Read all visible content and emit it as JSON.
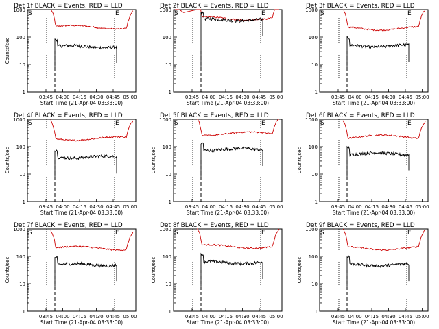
{
  "chart_data": [
    {
      "type": "line",
      "title": "Det 1f BLACK = Events, RED = LLD",
      "ylabel": "Counts/sec",
      "xlabel": "Start Time (21-Apr-04 03:33:00)",
      "x_ticks": [
        "03:45",
        "04:00",
        "04:15",
        "04:30",
        "04:45",
        "05:00"
      ],
      "y_ticks": [
        "1",
        "10",
        "100",
        "1000"
      ],
      "ylim": [
        1,
        1000
      ],
      "y_scale": "log",
      "markers": [
        "S",
        "E"
      ],
      "series": [
        {
          "color": "#cc0000",
          "y_level": 230,
          "spike": null
        },
        {
          "color": "#000000",
          "y_level": 45,
          "spike": null
        }
      ]
    },
    {
      "type": "line",
      "title": "Det 2f BLACK = Events, RED = LLD",
      "ylabel": "",
      "xlabel": "Start Time (21-Apr-04 03:33:00)",
      "x_ticks": [
        "03:45",
        "04:00",
        "04:15",
        "04:30",
        "04:45",
        "05:00"
      ],
      "y_ticks": [
        "1",
        "10",
        "100",
        "1000"
      ],
      "ylim": [
        1,
        1000
      ],
      "y_scale": "log",
      "markers": [
        "S",
        "E"
      ],
      "series": [
        {
          "color": "#cc0000",
          "y_level": 480,
          "spike": 1200
        },
        {
          "color": "#000000",
          "y_level": 430,
          "spike": null
        }
      ]
    },
    {
      "type": "line",
      "title": "Det 3f BLACK = Events, RED = LLD",
      "ylabel": "",
      "xlabel": "Start Time (21-Apr-04 03:33:00)",
      "x_ticks": [
        "03:45",
        "04:00",
        "04:15",
        "04:30",
        "04:45",
        "05:00"
      ],
      "y_ticks": [
        "1",
        "10",
        "100",
        "1000"
      ],
      "ylim": [
        1,
        1000
      ],
      "y_scale": "log",
      "markers": [
        "S",
        "E"
      ],
      "series": [
        {
          "color": "#cc0000",
          "y_level": 210,
          "spike": null
        },
        {
          "color": "#000000",
          "y_level": 48,
          "spike": null
        }
      ]
    },
    {
      "type": "line",
      "title": "Det 4f BLACK = Events, RED = LLD",
      "ylabel": "Counts/sec",
      "xlabel": "Start Time (21-Apr-04 03:33:00)",
      "x_ticks": [
        "03:45",
        "04:00",
        "04:15",
        "04:30",
        "04:45",
        "05:00"
      ],
      "y_ticks": [
        "1",
        "10",
        "100",
        "1000"
      ],
      "ylim": [
        1,
        1000
      ],
      "y_scale": "log",
      "markers": [
        "S",
        "E"
      ],
      "series": [
        {
          "color": "#cc0000",
          "y_level": 200,
          "spike": null
        },
        {
          "color": "#000000",
          "y_level": 42,
          "spike": null
        }
      ]
    },
    {
      "type": "line",
      "title": "Det 5f BLACK = Events, RED = LLD",
      "ylabel": "Counts/sec",
      "xlabel": "Start Time (21-Apr-04 03:33:00)",
      "x_ticks": [
        "03:45",
        "04:00",
        "04:15",
        "04:30",
        "04:45",
        "05:00"
      ],
      "y_ticks": [
        "1",
        "10",
        "100",
        "1000"
      ],
      "ylim": [
        1,
        1000
      ],
      "y_scale": "log",
      "markers": [
        "S",
        "E"
      ],
      "series": [
        {
          "color": "#cc0000",
          "y_level": 300,
          "spike": null
        },
        {
          "color": "#000000",
          "y_level": 80,
          "spike": null
        }
      ]
    },
    {
      "type": "line",
      "title": "Det 6f BLACK = Events, RED = LLD",
      "ylabel": "Counts/sec",
      "xlabel": "Start Time (21-Apr-04 03:33:00)",
      "x_ticks": [
        "03:45",
        "04:00",
        "04:15",
        "04:30",
        "04:45",
        "05:00"
      ],
      "y_ticks": [
        "1",
        "10",
        "100",
        "1000"
      ],
      "ylim": [
        1,
        1000
      ],
      "y_scale": "log",
      "markers": [
        "S",
        "E"
      ],
      "series": [
        {
          "color": "#cc0000",
          "y_level": 230,
          "spike": null
        },
        {
          "color": "#000000",
          "y_level": 55,
          "spike": null
        }
      ]
    },
    {
      "type": "line",
      "title": "Det 7f BLACK = Events, RED = LLD",
      "ylabel": "Counts/sec",
      "xlabel": "Start Time (21-Apr-04 03:33:00)",
      "x_ticks": [
        "03:45",
        "04:00",
        "04:15",
        "04:30",
        "04:45",
        "05:00"
      ],
      "y_ticks": [
        "1",
        "10",
        "100",
        "1000"
      ],
      "ylim": [
        1,
        1000
      ],
      "y_scale": "log",
      "markers": [
        "S",
        "E"
      ],
      "series": [
        {
          "color": "#cc0000",
          "y_level": 200,
          "spike": null
        },
        {
          "color": "#000000",
          "y_level": 50,
          "spike": null
        }
      ]
    },
    {
      "type": "line",
      "title": "Det 8f BLACK = Events, RED = LLD",
      "ylabel": "Counts/sec",
      "xlabel": "Start Time (21-Apr-04 03:33:00)",
      "x_ticks": [
        "03:45",
        "04:00",
        "04:15",
        "04:30",
        "04:45",
        "05:00"
      ],
      "y_ticks": [
        "1",
        "10",
        "100",
        "1000"
      ],
      "ylim": [
        1,
        1000
      ],
      "y_scale": "log",
      "markers": [
        "S",
        "E"
      ],
      "series": [
        {
          "color": "#cc0000",
          "y_level": 230,
          "spike": null
        },
        {
          "color": "#000000",
          "y_level": 60,
          "spike": null
        }
      ]
    },
    {
      "type": "line",
      "title": "Det 9f BLACK = Events, RED = LLD",
      "ylabel": "Counts/sec",
      "xlabel": "Start Time (21-Apr-04 03:33:00)",
      "x_ticks": [
        "03:45",
        "04:00",
        "04:15",
        "04:30",
        "04:45",
        "05:00"
      ],
      "y_ticks": [
        "1",
        "10",
        "100",
        "1000"
      ],
      "ylim": [
        1,
        1000
      ],
      "y_scale": "log",
      "markers": [
        "S",
        "E"
      ],
      "series": [
        {
          "color": "#cc0000",
          "y_level": 200,
          "spike": null
        },
        {
          "color": "#000000",
          "y_level": 50,
          "spike": null
        }
      ]
    }
  ]
}
